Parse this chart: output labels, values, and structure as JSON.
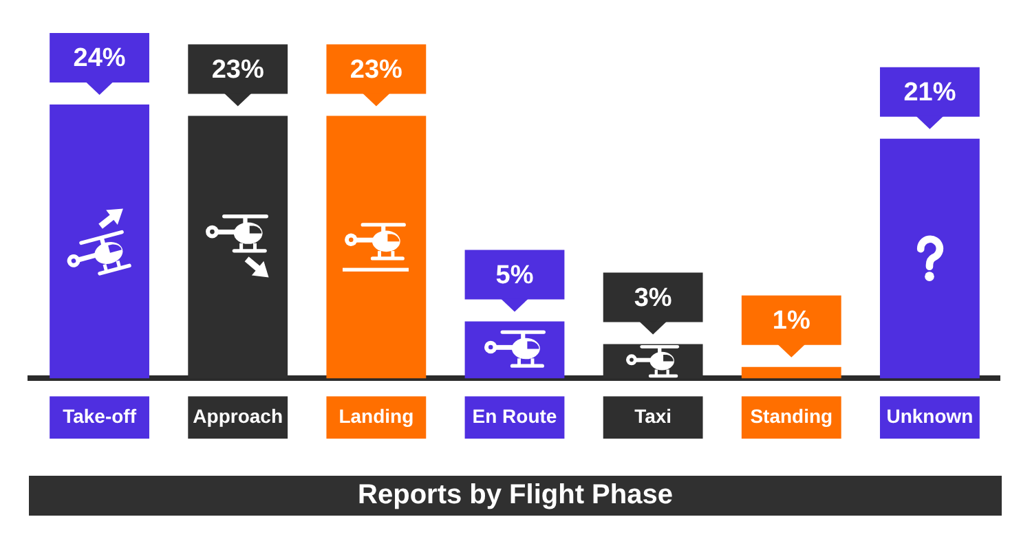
{
  "chart_data": {
    "type": "bar",
    "title": "Reports by Flight Phase",
    "categories": [
      "Take-off",
      "Approach",
      "Landing",
      "En Route",
      "Taxi",
      "Standing",
      "Unknown"
    ],
    "values": [
      24,
      23,
      23,
      5,
      3,
      1,
      21
    ],
    "colors": [
      "#4f2fe0",
      "#2f2f2f",
      "#ff6f00",
      "#4f2fe0",
      "#2f2f2f",
      "#ff6f00",
      "#4f2fe0"
    ],
    "value_labels": [
      "24%",
      "23%",
      "23%",
      "5%",
      "3%",
      "1%",
      "21%"
    ]
  }
}
